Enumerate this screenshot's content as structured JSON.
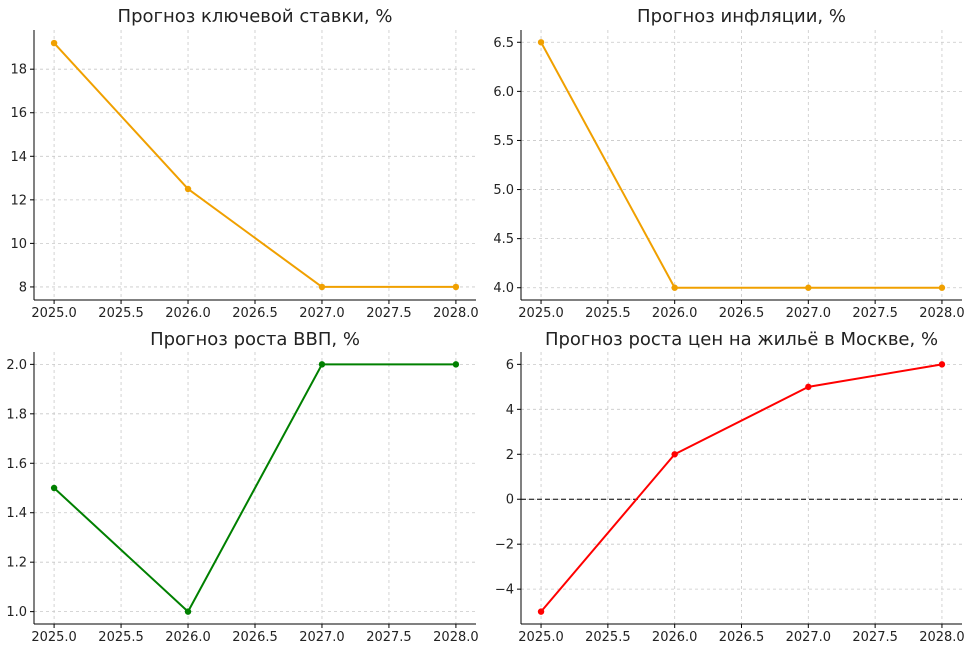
{
  "chart_data": [
    {
      "type": "line",
      "title": "Прогноз ключевой ставки, %",
      "x": [
        2025.0,
        2026.0,
        2027.0,
        2028.0
      ],
      "series": [
        {
          "values": [
            19.2,
            12.5,
            8.0,
            8.0
          ],
          "color": "#f0a000"
        }
      ],
      "xlim": [
        2024.85,
        2028.15
      ],
      "ylim": [
        7.4,
        19.8
      ],
      "xticks": [
        2025.0,
        2025.5,
        2026.0,
        2026.5,
        2027.0,
        2027.5,
        2028.0
      ],
      "xtick_labels": [
        "2025.0",
        "2025.5",
        "2026.0",
        "2026.5",
        "2027.0",
        "2027.5",
        "2028.0"
      ],
      "yticks": [
        8,
        10,
        12,
        14,
        16,
        18
      ],
      "ytick_labels": [
        "8",
        "10",
        "12",
        "14",
        "16",
        "18"
      ],
      "grid": true
    },
    {
      "type": "line",
      "title": "Прогноз инфляции, %",
      "x": [
        2025.0,
        2026.0,
        2027.0,
        2028.0
      ],
      "series": [
        {
          "values": [
            6.5,
            4.0,
            4.0,
            4.0
          ],
          "color": "#f0a000"
        }
      ],
      "xlim": [
        2024.85,
        2028.15
      ],
      "ylim": [
        3.875,
        6.625
      ],
      "xticks": [
        2025.0,
        2025.5,
        2026.0,
        2026.5,
        2027.0,
        2027.5,
        2028.0
      ],
      "xtick_labels": [
        "2025.0",
        "2025.5",
        "2026.0",
        "2026.5",
        "2027.0",
        "2027.5",
        "2028.0"
      ],
      "yticks": [
        4.0,
        4.5,
        5.0,
        5.5,
        6.0,
        6.5
      ],
      "ytick_labels": [
        "4.0",
        "4.5",
        "5.0",
        "5.5",
        "6.0",
        "6.5"
      ],
      "grid": true
    },
    {
      "type": "line",
      "title": "Прогноз роста ВВП, %",
      "x": [
        2025.0,
        2026.0,
        2027.0,
        2028.0
      ],
      "series": [
        {
          "values": [
            1.5,
            1.0,
            2.0,
            2.0
          ],
          "color": "#008000"
        }
      ],
      "xlim": [
        2024.85,
        2028.15
      ],
      "ylim": [
        0.95,
        2.05
      ],
      "xticks": [
        2025.0,
        2025.5,
        2026.0,
        2026.5,
        2027.0,
        2027.5,
        2028.0
      ],
      "xtick_labels": [
        "2025.0",
        "2025.5",
        "2026.0",
        "2026.5",
        "2027.0",
        "2027.5",
        "2028.0"
      ],
      "yticks": [
        1.0,
        1.2,
        1.4,
        1.6,
        1.8,
        2.0
      ],
      "ytick_labels": [
        "1.0",
        "1.2",
        "1.4",
        "1.6",
        "1.8",
        "2.0"
      ],
      "grid": true
    },
    {
      "type": "line",
      "title": "Прогноз роста цен на жильё в Москве, %",
      "x": [
        2025.0,
        2026.0,
        2027.0,
        2028.0
      ],
      "series": [
        {
          "values": [
            -5,
            2,
            5,
            6
          ],
          "color": "#ff0000"
        }
      ],
      "xlim": [
        2024.85,
        2028.15
      ],
      "ylim": [
        -5.55,
        6.55
      ],
      "xticks": [
        2025.0,
        2025.5,
        2026.0,
        2026.5,
        2027.0,
        2027.5,
        2028.0
      ],
      "xtick_labels": [
        "2025.0",
        "2025.5",
        "2026.0",
        "2026.5",
        "2027.0",
        "2027.5",
        "2028.0"
      ],
      "yticks": [
        -4,
        -2,
        0,
        2,
        4,
        6
      ],
      "ytick_labels": [
        "−4",
        "−2",
        "0",
        "2",
        "4",
        "6"
      ],
      "hline": 0,
      "grid": true
    }
  ]
}
